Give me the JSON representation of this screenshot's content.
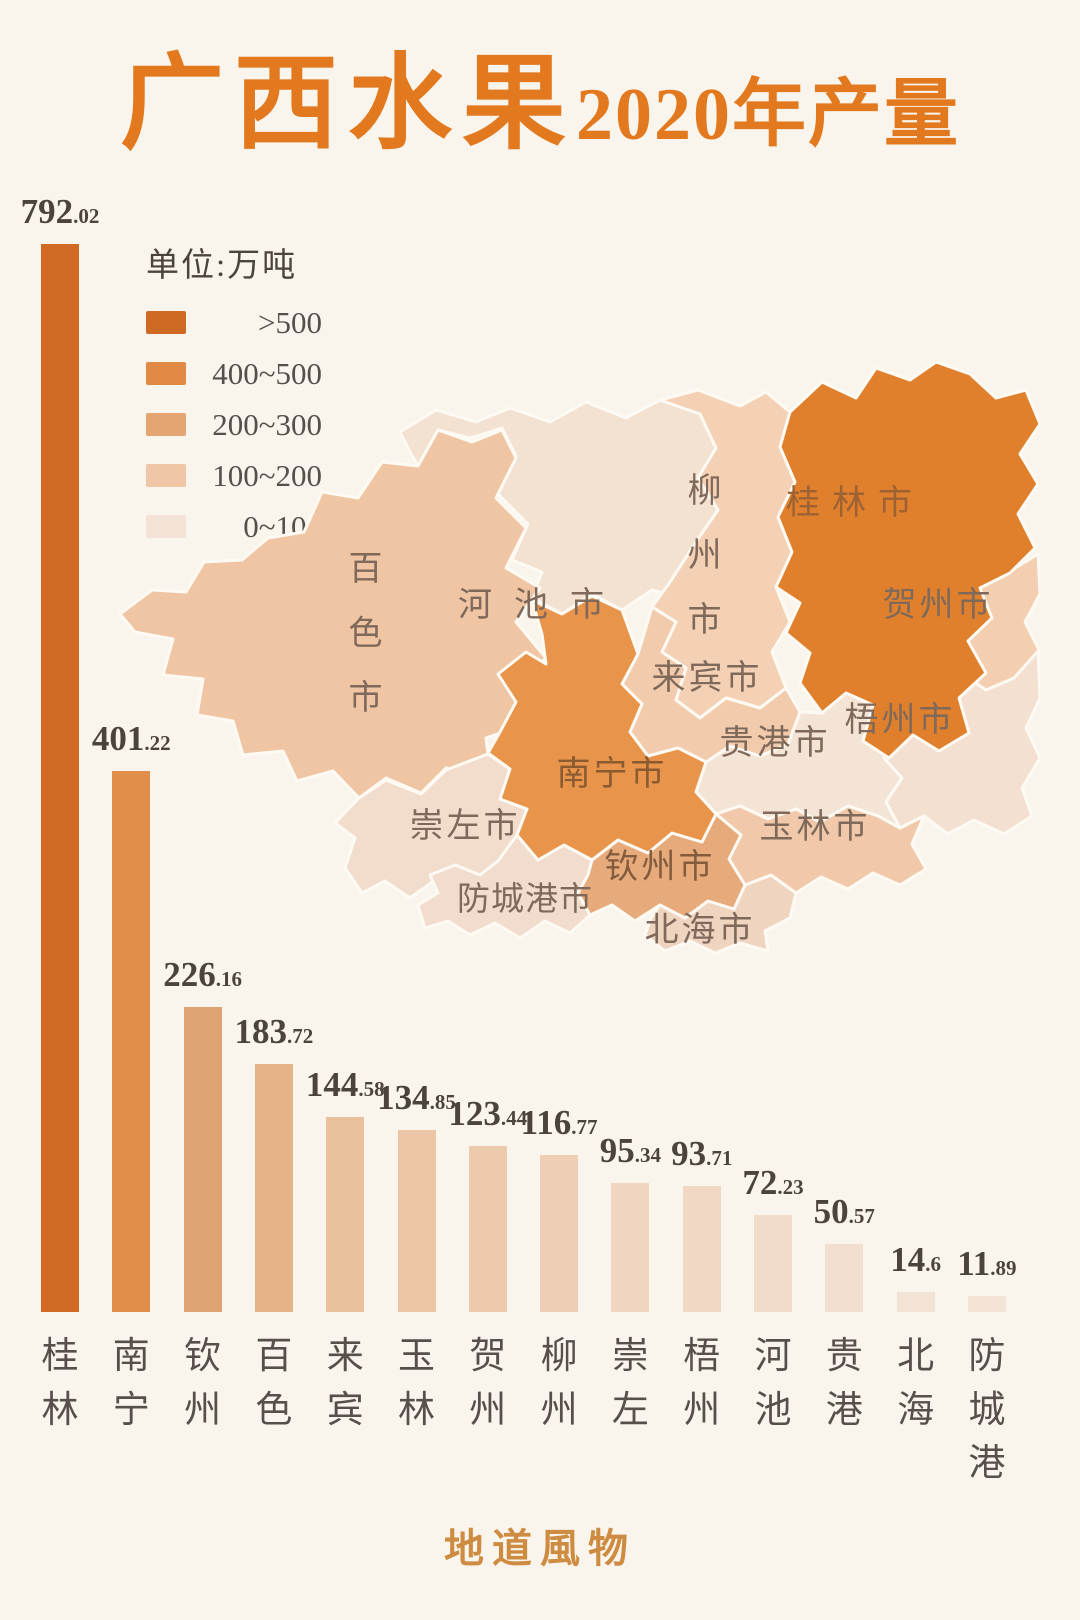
{
  "title": {
    "main": "广西水果",
    "suffix": "2020年产量"
  },
  "legend": {
    "unit_label": "单位:万吨",
    "items": [
      {
        "label": ">500",
        "color": "#ce6a23"
      },
      {
        "label": "400~500",
        "color": "#e08a45"
      },
      {
        "label": "200~300",
        "color": "#e4a572"
      },
      {
        "label": "100~200",
        "color": "#efc6a6"
      },
      {
        "label": "0~100",
        "color": "#f3e2d5"
      }
    ]
  },
  "chart_data": {
    "type": "bar",
    "title": "广西水果2020年产量",
    "unit": "万吨",
    "categories": [
      "桂林",
      "南宁",
      "钦州",
      "百色",
      "来宾",
      "玉林",
      "贺州",
      "柳州",
      "崇左",
      "梧州",
      "河池",
      "贵港",
      "北海",
      "防城港"
    ],
    "values": [
      792.02,
      401.22,
      226.16,
      183.72,
      144.58,
      134.85,
      123.44,
      116.77,
      95.34,
      93.71,
      72.23,
      50.57,
      14.6,
      11.89
    ],
    "bar_colors": [
      "#d06a25",
      "#e08e4a",
      "#dda471",
      "#e6b287",
      "#eabf9b",
      "#ecc5a4",
      "#edcaae",
      "#eecfb6",
      "#f0d6c1",
      "#f0d8c4",
      "#f1dbc9",
      "#f2dfcf",
      "#f3e3d5",
      "#f3e4d7"
    ],
    "ylim": [
      0,
      800
    ],
    "grid": false,
    "legend_position": "upper-left"
  },
  "map": {
    "regions": [
      {
        "id": "hechi",
        "name": "河池市",
        "value": 72.23,
        "color": "#f3e1d2",
        "label_color": "#7f695a"
      },
      {
        "id": "baise",
        "name": "百色市",
        "value": 183.72,
        "color": "#f0c5a3",
        "label_color": "#7f695a"
      },
      {
        "id": "chongzuo",
        "name": "崇左市",
        "value": 95.34,
        "color": "#f2ddcd",
        "label_color": "#7f695a"
      },
      {
        "id": "guigang",
        "name": "贵港市",
        "value": 50.57,
        "color": "#f4e4d6",
        "label_color": "#7f695a"
      },
      {
        "id": "wuzhou",
        "name": "梧州市",
        "value": 93.71,
        "color": "#f3e0d1",
        "label_color": "#7f695a"
      },
      {
        "id": "fangchenggang",
        "name": "防城港市",
        "value": 11.89,
        "color": "#f1dccd",
        "label_color": "#7f695a"
      },
      {
        "id": "beihai",
        "name": "北海市",
        "value": 14.6,
        "color": "#efd4c0",
        "label_color": "#7f695a"
      },
      {
        "id": "liuzhou",
        "name": "柳州市",
        "value": 116.77,
        "color": "#f4d1b4",
        "label_color": "#7f695a"
      },
      {
        "id": "hezhou",
        "name": "贺州市",
        "value": 123.44,
        "color": "#f3ceb1",
        "label_color": "#7f695a"
      },
      {
        "id": "laibin",
        "name": "来宾市",
        "value": 144.58,
        "color": "#f2cbad",
        "label_color": "#7f695a"
      },
      {
        "id": "yulin",
        "name": "玉林市",
        "value": 134.85,
        "color": "#f1c9aa",
        "label_color": "#7f695a"
      },
      {
        "id": "qinzhou",
        "name": "钦州市",
        "value": 226.16,
        "color": "#e7aa7a",
        "label_color": "#835c3e"
      },
      {
        "id": "nanning",
        "name": "南宁市",
        "value": 401.22,
        "color": "#e8944a",
        "label_color": "#8a5a30"
      },
      {
        "id": "guilin",
        "name": "桂林市",
        "value": 792.02,
        "color": "#e1802c",
        "label_color": "#9c6233"
      }
    ]
  },
  "footer": {
    "brand": "地道風物"
  }
}
